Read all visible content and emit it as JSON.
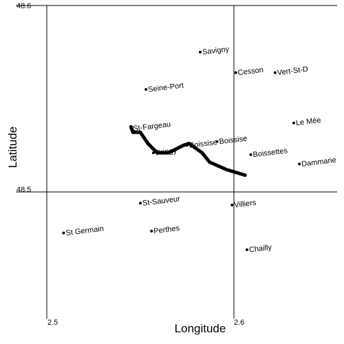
{
  "chart_data": {
    "type": "map",
    "title": "",
    "xlabel": "Longitude",
    "ylabel": "Latitude",
    "x_ticks": [
      "2.5",
      "2.6"
    ],
    "y_ticks": [
      "48.6",
      "48.5"
    ],
    "xlim": [
      2.5,
      2.656
    ],
    "ylim": [
      2.0,
      48.6
    ],
    "towns": [
      {
        "name": "Savigny",
        "lon": 2.582,
        "lat": 48.575
      },
      {
        "name": "Cesson",
        "lon": 2.601,
        "lat": 48.564
      },
      {
        "name": "Vert-St-D",
        "lon": 2.622,
        "lat": 48.564
      },
      {
        "name": "Seine-Port",
        "lon": 2.553,
        "lat": 48.555
      },
      {
        "name": "Le Mée",
        "lon": 2.632,
        "lat": 48.537
      },
      {
        "name": "St-Fargeau",
        "lon": 2.545,
        "lat": 48.534
      },
      {
        "name": "Boissise",
        "lon": 2.591,
        "lat": 48.527
      },
      {
        "name": "Boissise",
        "lon": 2.575,
        "lat": 48.525
      },
      {
        "name": "Pringy",
        "lon": 2.557,
        "lat": 48.521
      },
      {
        "name": "Boissettes",
        "lon": 2.609,
        "lat": 48.52
      },
      {
        "name": "Dammarie",
        "lon": 2.635,
        "lat": 48.515
      },
      {
        "name": "St-Sauveur",
        "lon": 2.55,
        "lat": 48.494
      },
      {
        "name": "Villiers",
        "lon": 2.599,
        "lat": 48.493
      },
      {
        "name": "St Germain",
        "lon": 2.509,
        "lat": 48.478
      },
      {
        "name": "Perthes",
        "lon": 2.556,
        "lat": 48.479
      },
      {
        "name": "Chailly",
        "lon": 2.607,
        "lat": 48.469
      }
    ],
    "route": [
      {
        "lon": 2.545,
        "lat": 48.535
      },
      {
        "lon": 2.546,
        "lat": 48.532
      },
      {
        "lon": 2.55,
        "lat": 48.532
      },
      {
        "lon": 2.554,
        "lat": 48.526
      },
      {
        "lon": 2.559,
        "lat": 48.521
      },
      {
        "lon": 2.565,
        "lat": 48.521
      },
      {
        "lon": 2.569,
        "lat": 48.523
      },
      {
        "lon": 2.573,
        "lat": 48.525
      },
      {
        "lon": 2.576,
        "lat": 48.526
      },
      {
        "lon": 2.583,
        "lat": 48.521
      },
      {
        "lon": 2.587,
        "lat": 48.516
      },
      {
        "lon": 2.596,
        "lat": 48.512
      },
      {
        "lon": 2.606,
        "lat": 48.509
      }
    ]
  }
}
